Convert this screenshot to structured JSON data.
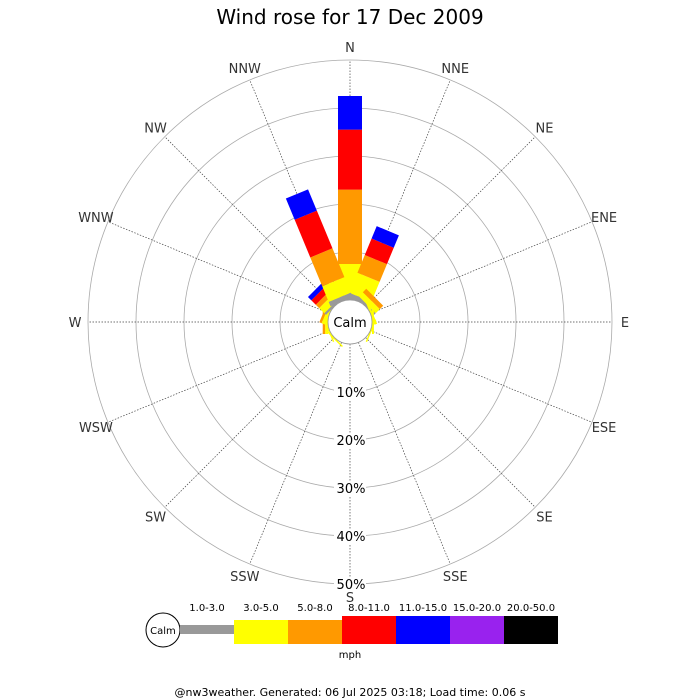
{
  "chart_data": {
    "type": "wind-rose",
    "title": "Wind rose for 17 Dec 2009",
    "directions": [
      "N",
      "NNE",
      "NE",
      "ENE",
      "E",
      "ESE",
      "SE",
      "SSE",
      "S",
      "SSW",
      "SW",
      "WSW",
      "W",
      "WNW",
      "NW",
      "NNW"
    ],
    "radial_ticks": [
      "10%",
      "20%",
      "30%",
      "40%",
      "50%"
    ],
    "radial_max": 50,
    "calm_label": "Calm",
    "units": "mph",
    "speed_bins": [
      {
        "label": "1.0-3.0",
        "color": "#999999"
      },
      {
        "label": "3.0-5.0",
        "color": "#ffff00"
      },
      {
        "label": "5.0-8.0",
        "color": "#ff9900"
      },
      {
        "label": "8.0-11.0",
        "color": "#ff0000"
      },
      {
        "label": "11.0-15.0",
        "color": "#0000ff"
      },
      {
        "label": "15.0-20.0",
        "color": "#9922ee"
      },
      {
        "label": "20.0-50.0",
        "color": "#000000"
      }
    ],
    "series": [
      {
        "direction": "N",
        "values": [
          1.0,
          6.5,
          15.5,
          12.5,
          7.0,
          0,
          0
        ]
      },
      {
        "direction": "NNE",
        "values": [
          1.0,
          4.5,
          4.0,
          3.7,
          2.8,
          0,
          0
        ]
      },
      {
        "direction": "NE",
        "values": [
          0.5,
          1.2,
          1.0,
          0,
          0,
          0,
          0
        ]
      },
      {
        "direction": "ENE",
        "values": [
          0,
          0.5,
          0,
          0,
          0,
          0,
          0
        ]
      },
      {
        "direction": "E",
        "values": [
          0,
          0.4,
          0,
          0,
          0,
          0,
          0
        ]
      },
      {
        "direction": "ESE",
        "values": [
          0,
          0.3,
          0,
          0,
          0,
          0,
          0
        ]
      },
      {
        "direction": "SE",
        "values": [
          0,
          0,
          0,
          0,
          0,
          0,
          0
        ]
      },
      {
        "direction": "SSE",
        "values": [
          0,
          0,
          0,
          0,
          0,
          0,
          0
        ]
      },
      {
        "direction": "S",
        "values": [
          0,
          0,
          0,
          0,
          0,
          0,
          0
        ]
      },
      {
        "direction": "SSW",
        "values": [
          0,
          0,
          0,
          0,
          0,
          0,
          0
        ]
      },
      {
        "direction": "SW",
        "values": [
          0,
          0.3,
          0,
          0,
          0,
          0,
          0
        ]
      },
      {
        "direction": "WSW",
        "values": [
          0,
          0.3,
          0,
          0,
          0,
          0,
          0
        ]
      },
      {
        "direction": "W",
        "values": [
          0,
          0.6,
          0.5,
          0,
          0,
          0,
          0
        ]
      },
      {
        "direction": "WNW",
        "values": [
          0,
          0.8,
          0.5,
          0,
          0,
          0,
          0
        ]
      },
      {
        "direction": "NW",
        "values": [
          0.5,
          1.5,
          1.0,
          1.3,
          1.0,
          0,
          0
        ]
      },
      {
        "direction": "NNW",
        "values": [
          1.0,
          3.5,
          6.5,
          8.5,
          4.8,
          0,
          0
        ]
      }
    ],
    "footer": "@nw3weather. Generated: 06 Jul 2025 03:18; Load time: 0.06 s"
  }
}
